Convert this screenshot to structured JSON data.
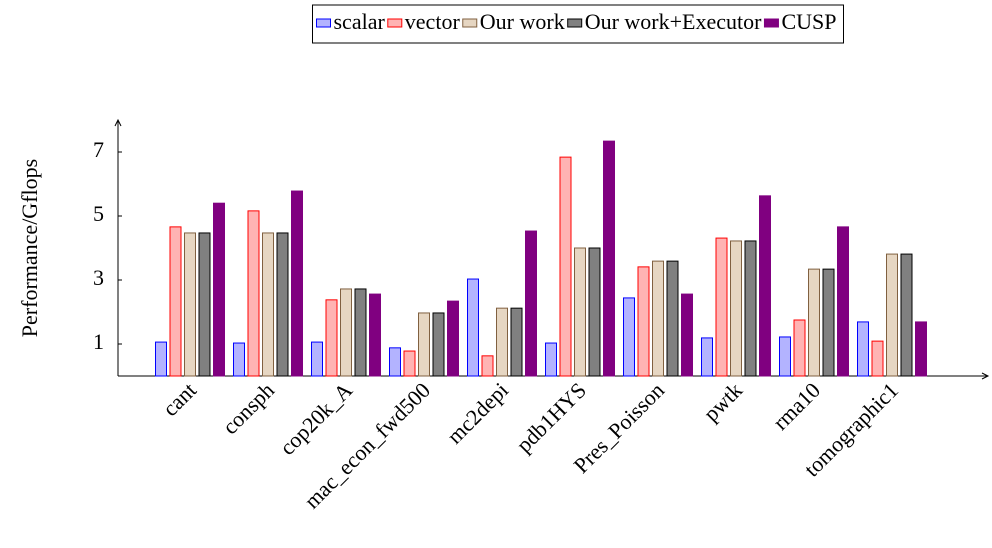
{
  "chart_data": {
    "type": "bar",
    "y_label": "Performance/Gflops",
    "categories": [
      "cant",
      "consph",
      "cop20k_A",
      "mac_econ_fwd500",
      "mc2depi",
      "pdb1HYS",
      "Pres_Poisson",
      "pwtk",
      "rma10",
      "tomographic1"
    ],
    "series": [
      {
        "name": "scalar",
        "color": "#b3b3ff",
        "stroke": "#0000ff",
        "values": [
          1.06,
          1.03,
          1.06,
          0.88,
          3.03,
          1.03,
          2.44,
          1.19,
          1.22,
          1.69
        ]
      },
      {
        "name": "vector",
        "color": "#ffb3b3",
        "stroke": "#ff0000",
        "values": [
          4.66,
          5.16,
          2.38,
          0.78,
          0.63,
          6.84,
          3.41,
          4.31,
          1.75,
          1.09
        ]
      },
      {
        "name": "Our work",
        "color": "#e6d6c2",
        "stroke": "#806040",
        "values": [
          4.47,
          4.47,
          2.72,
          1.97,
          2.12,
          4.0,
          3.59,
          4.22,
          3.34,
          3.81
        ]
      },
      {
        "name": "Our work+Executor",
        "color": "#808080",
        "stroke": "#000000",
        "values": [
          4.47,
          4.47,
          2.72,
          1.97,
          2.12,
          4.0,
          3.59,
          4.22,
          3.34,
          3.81
        ]
      },
      {
        "name": "CUSP",
        "color": "#800080",
        "stroke": "#800080",
        "values": [
          5.4,
          5.78,
          2.56,
          2.34,
          4.53,
          7.34,
          2.56,
          5.63,
          4.66,
          1.69
        ]
      }
    ],
    "ylim": [
      0,
      8
    ],
    "yticks": [
      1,
      3,
      5,
      7
    ],
    "grid": false,
    "legend": "top"
  }
}
